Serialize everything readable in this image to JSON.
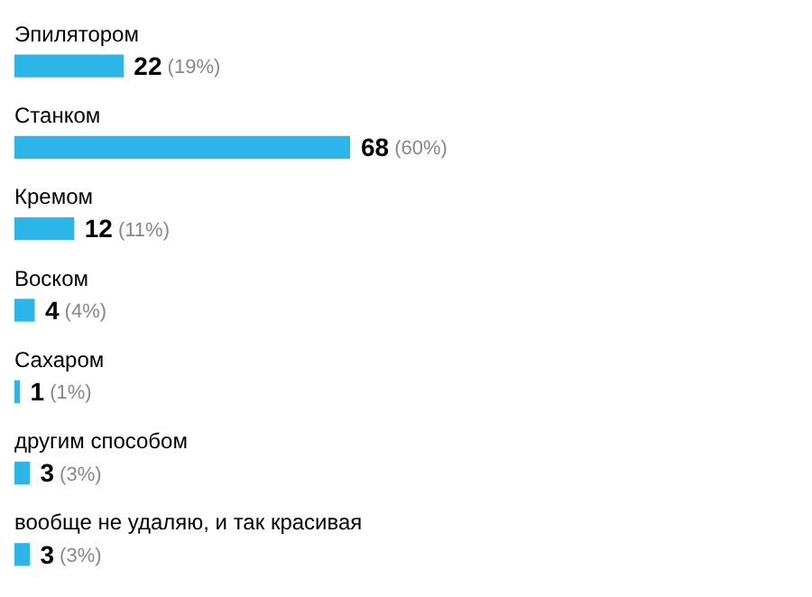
{
  "chart_data": {
    "type": "bar",
    "orientation": "horizontal",
    "categories": [
      "Эпилятором",
      "Станком",
      "Кремом",
      "Воском",
      "Сахаром",
      "другим способом",
      "вообще не удаляю, и так красивая"
    ],
    "values": [
      22,
      68,
      12,
      4,
      1,
      3,
      3
    ],
    "value_labels": [
      "22 (19%)",
      "68 (60%)",
      "12 (11%)",
      "4 (4%)",
      "1 (1%)",
      "3 (3%)",
      "3 (3%)"
    ],
    "color": "#2cb5e8"
  }
}
